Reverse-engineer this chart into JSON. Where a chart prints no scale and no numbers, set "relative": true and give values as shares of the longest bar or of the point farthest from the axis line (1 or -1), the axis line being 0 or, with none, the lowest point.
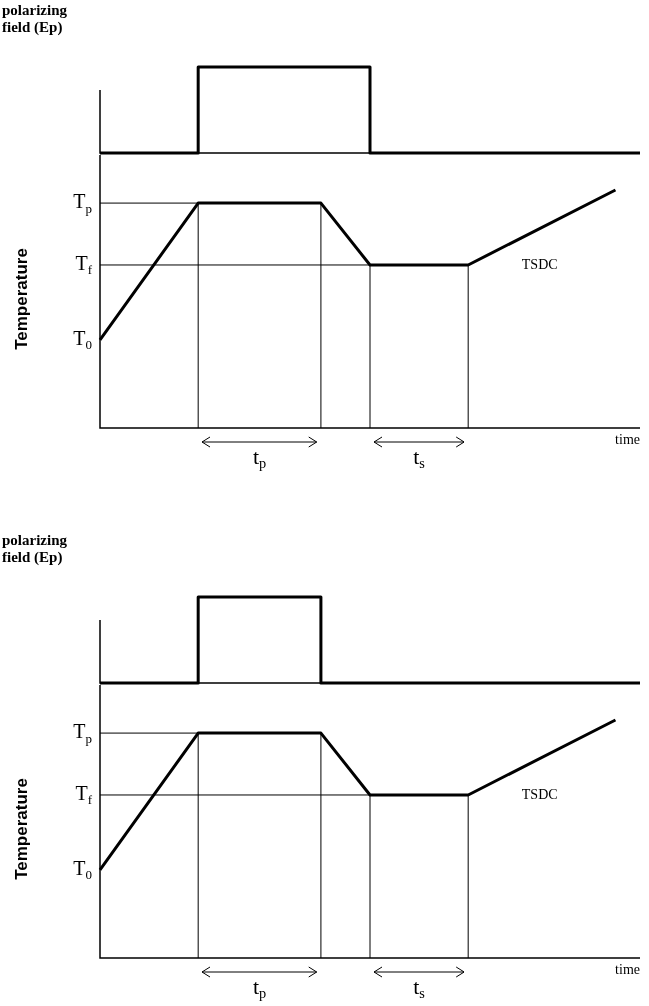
{
  "chart_data": [
    {
      "type": "step",
      "ylabel": "polarizing field (Ep)",
      "categories": [
        null,
        null,
        null,
        null,
        null,
        null,
        null,
        null,
        null,
        null,
        null,
        null,
        null,
        null,
        null,
        null,
        null,
        null,
        null,
        null,
        null,
        null,
        null
      ],
      "relative": true,
      "legend": false,
      "grid": false,
      "marker": "none",
      "series": [
        {
          "color": "#000000",
          "values": [
            0,
            null,
            null,
            null,
            1,
            null,
            null,
            null,
            null,
            null,
            null,
            0,
            null,
            null,
            null,
            null,
            null,
            null,
            null,
            null,
            null,
            null,
            0
          ]
        }
      ]
    },
    {
      "type": "line",
      "ylabel": "Temperature",
      "xlabel": "time",
      "categories": [
        null,
        null,
        null,
        null,
        null,
        null,
        null,
        null,
        null,
        null,
        null,
        null,
        null,
        null,
        null,
        null,
        null,
        null,
        null,
        null,
        null,
        null,
        null
      ],
      "relative": true,
      "legend": false,
      "grid": false,
      "marker": "none",
      "series": [
        {
          "color": "#000000",
          "values": [
            0.37,
            null,
            null,
            null,
            0.945,
            null,
            null,
            null,
            null,
            0.945,
            null,
            0.685,
            null,
            null,
            null,
            0.685,
            null,
            null,
            null,
            null,
            null,
            1,
            null
          ]
        }
      ],
      "ref_lines": [
        {
          "axis": "y",
          "value": 0.945,
          "label": "T$_{p}$"
        },
        {
          "axis": "y",
          "value": 0.685,
          "label": "T$_{f}$"
        }
      ],
      "annotations": [
        "t$_{p}$",
        "t$_{s}$",
        "TSDC",
        "T$_{0}$"
      ]
    },
    {
      "type": "step",
      "ylabel": "polarizing field (Ep)",
      "categories": [
        null,
        null,
        null,
        null,
        null,
        null,
        null,
        null,
        null,
        null,
        null,
        null,
        null,
        null,
        null,
        null,
        null,
        null,
        null,
        null,
        null,
        null,
        null
      ],
      "relative": true,
      "legend": false,
      "grid": false,
      "marker": "none",
      "series": [
        {
          "color": "#000000",
          "values": [
            0,
            null,
            null,
            null,
            1,
            null,
            null,
            null,
            null,
            0,
            null,
            null,
            null,
            null,
            null,
            null,
            null,
            null,
            null,
            null,
            null,
            null,
            0
          ]
        }
      ]
    },
    {
      "type": "line",
      "ylabel": "Temperature",
      "xlabel": "time",
      "categories": [
        null,
        null,
        null,
        null,
        null,
        null,
        null,
        null,
        null,
        null,
        null,
        null,
        null,
        null,
        null,
        null,
        null,
        null,
        null,
        null,
        null,
        null,
        null
      ],
      "relative": true,
      "legend": false,
      "grid": false,
      "marker": "none",
      "series": [
        {
          "color": "#000000",
          "values": [
            0.37,
            null,
            null,
            null,
            0.945,
            null,
            null,
            null,
            null,
            0.945,
            null,
            0.685,
            null,
            null,
            null,
            0.685,
            null,
            null,
            null,
            null,
            null,
            1,
            null
          ]
        }
      ],
      "ref_lines": [
        {
          "axis": "y",
          "value": 0.945,
          "label": "T$_{p}$"
        },
        {
          "axis": "y",
          "value": 0.685,
          "label": "T$_{f}$"
        }
      ],
      "annotations": [
        "t$_{p}$",
        "t$_{s}$",
        "TSDC",
        "T$_{0}$"
      ]
    }
  ]
}
